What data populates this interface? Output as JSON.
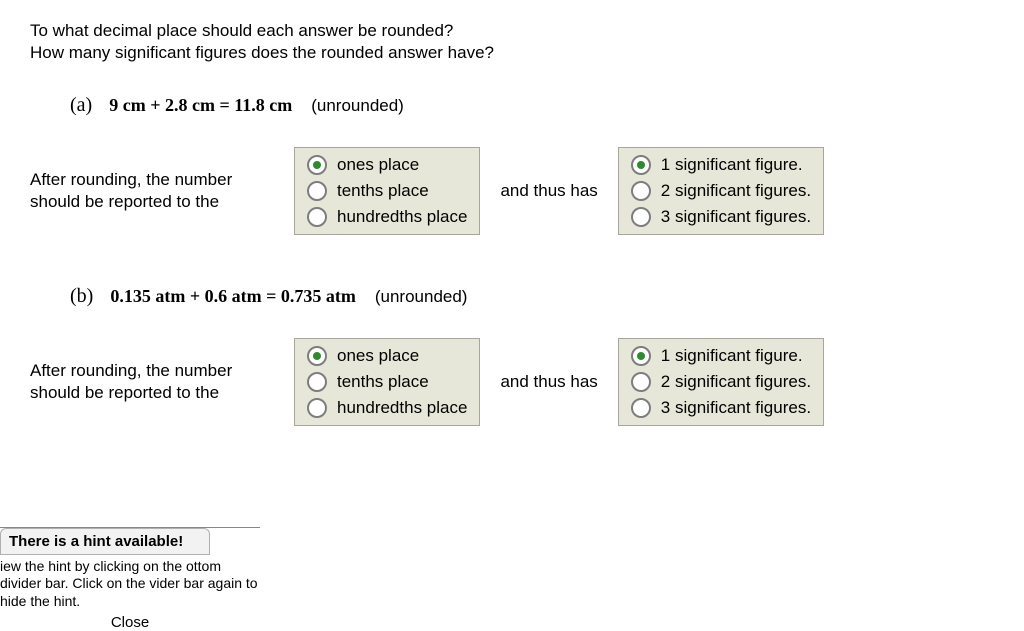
{
  "questions": {
    "line1": "To what decimal place should each answer be rounded?",
    "line2": "How many significant figures does the rounded answer have?"
  },
  "parts": [
    {
      "label": "(a)",
      "equation": "9  cm + 2.8  cm = 11.8  cm",
      "unrounded": "(unrounded)",
      "leading": "After rounding, the number should be reported to the",
      "connector": "and thus has",
      "places": {
        "selected": 0,
        "options": [
          "ones place",
          "tenths place",
          "hundredths place"
        ]
      },
      "sigfigs": {
        "selected": 0,
        "options": [
          "1 significant figure.",
          "2 significant figures.",
          "3 significant figures."
        ]
      }
    },
    {
      "label": "(b)",
      "equation": "0.135  atm + 0.6  atm = 0.735  atm",
      "unrounded": "(unrounded)",
      "leading": "After rounding, the number should be reported to the",
      "connector": "and thus has",
      "places": {
        "selected": 0,
        "options": [
          "ones place",
          "tenths place",
          "hundredths place"
        ]
      },
      "sigfigs": {
        "selected": 0,
        "options": [
          "1 significant figure.",
          "2 significant figures.",
          "3 significant figures."
        ]
      }
    }
  ],
  "hint": {
    "title": "There is a hint available!",
    "body": "iew the hint by clicking on the ottom divider bar. Click on the vider bar again to hide the hint.",
    "close": "Close"
  },
  "colors": {
    "radio_group_bg": "#e7e7d9",
    "radio_group_border": "#a6a69a",
    "radio_selected_dot": "#2e8b2e"
  }
}
